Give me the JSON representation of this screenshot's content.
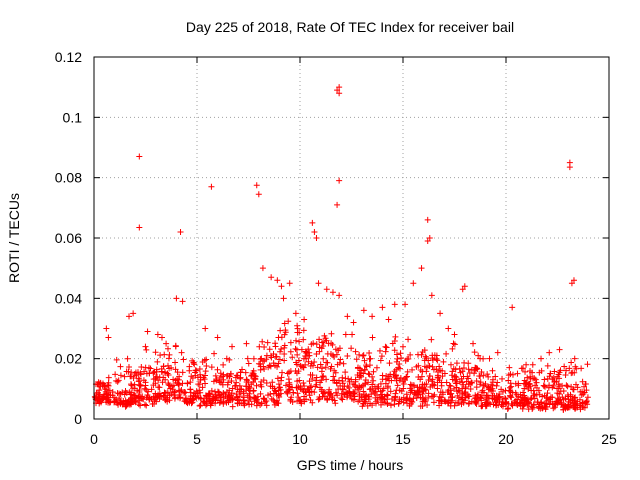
{
  "chart_data": {
    "type": "scatter",
    "title": "Day 225 of 2018, Rate Of TEC Index for receiver bail",
    "xlabel": "GPS time / hours",
    "ylabel": "ROTI / TECUs",
    "xlim": [
      0,
      25
    ],
    "ylim": [
      0,
      0.12
    ],
    "xticks": [
      0,
      5,
      10,
      15,
      20,
      25
    ],
    "yticks": [
      0,
      0.02,
      0.04,
      0.06,
      0.08,
      0.1,
      0.12
    ],
    "xtick_labels": [
      "0",
      "5",
      "10",
      "15",
      "20",
      "25"
    ],
    "ytick_labels": [
      "0",
      "0.02",
      "0.04",
      "0.06",
      "0.08",
      "0.1",
      "0.12"
    ],
    "grid": true,
    "marker": "+",
    "color": "#ff0000",
    "series": [
      {
        "name": "ROTI",
        "x": [
          2.2,
          2.2,
          4.2,
          5.7,
          7.9,
          8.0,
          10.6,
          10.7,
          10.8,
          11.8,
          11.9,
          11.9,
          11.9,
          11.8,
          23.1,
          23.1,
          16.2,
          16.3,
          16.2,
          8.2,
          8.6,
          8.9,
          9.1,
          9.5,
          9.2,
          10.9,
          11.3,
          11.6,
          11.9,
          15.5,
          15.9,
          16.4,
          17.9,
          18.0,
          20.3,
          23.2,
          23.3,
          4.0,
          4.3,
          1.7,
          1.9,
          0.6,
          0.7,
          5.4,
          6.0,
          13.5,
          14.0,
          14.6,
          3.1,
          3.3,
          3.5,
          2.6,
          21.3,
          21.7,
          22.1,
          22.6,
          19.2,
          19.6,
          7.4,
          6.7,
          12.6,
          13.1,
          14.3,
          17.2,
          17.5,
          18.4,
          9.8,
          10.2,
          12.3,
          15.1,
          16.8
        ],
        "y": [
          0.087,
          0.0635,
          0.062,
          0.077,
          0.0775,
          0.0745,
          0.065,
          0.062,
          0.06,
          0.109,
          0.11,
          0.108,
          0.079,
          0.071,
          0.085,
          0.0835,
          0.066,
          0.06,
          0.059,
          0.05,
          0.047,
          0.046,
          0.044,
          0.045,
          0.04,
          0.045,
          0.043,
          0.042,
          0.041,
          0.045,
          0.05,
          0.041,
          0.043,
          0.044,
          0.037,
          0.045,
          0.046,
          0.04,
          0.039,
          0.034,
          0.035,
          0.03,
          0.027,
          0.03,
          0.027,
          0.034,
          0.037,
          0.038,
          0.028,
          0.027,
          0.025,
          0.029,
          0.018,
          0.02,
          0.022,
          0.023,
          0.02,
          0.022,
          0.025,
          0.024,
          0.032,
          0.036,
          0.033,
          0.03,
          0.028,
          0.025,
          0.035,
          0.033,
          0.034,
          0.038,
          0.035
        ]
      }
    ],
    "bulk_envelope": {
      "note": "dense base of points approximating the data cloud; y range per 1-hour bin [min, max]",
      "hours": [
        0,
        1,
        2,
        3,
        4,
        5,
        6,
        7,
        8,
        9,
        10,
        11,
        12,
        13,
        14,
        15,
        16,
        17,
        18,
        19,
        20,
        21,
        22,
        23
      ],
      "low": [
        0.005,
        0.004,
        0.004,
        0.005,
        0.005,
        0.004,
        0.004,
        0.004,
        0.004,
        0.005,
        0.005,
        0.005,
        0.005,
        0.004,
        0.004,
        0.004,
        0.004,
        0.004,
        0.004,
        0.004,
        0.003,
        0.003,
        0.003,
        0.003
      ],
      "high": [
        0.014,
        0.02,
        0.024,
        0.026,
        0.022,
        0.022,
        0.02,
        0.02,
        0.03,
        0.034,
        0.032,
        0.03,
        0.028,
        0.027,
        0.028,
        0.028,
        0.028,
        0.026,
        0.024,
        0.016,
        0.018,
        0.016,
        0.018,
        0.02
      ]
    }
  }
}
